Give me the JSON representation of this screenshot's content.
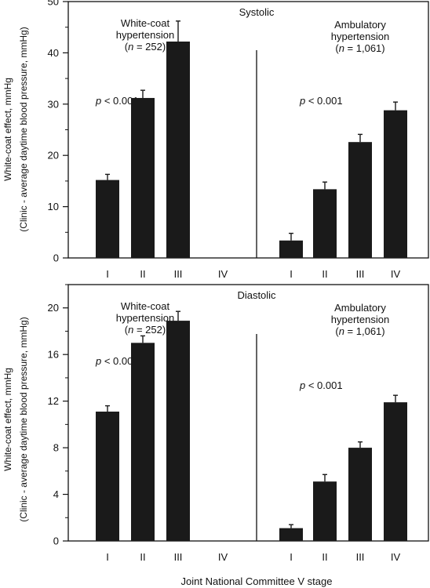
{
  "figure": {
    "xlabel": "Joint National Committee V stage",
    "ylabel_line1": "White-coat effect, mmHg",
    "ylabel_line2": "(Clinic - average daytime blood pressure, mmHg)"
  },
  "chart_data": [
    {
      "type": "bar",
      "title": "Systolic",
      "xlabel": "Joint National Committee V stage",
      "ylabel": "White-coat effect, mmHg (Clinic - average daytime blood pressure, mmHg)",
      "ylim": [
        0,
        50
      ],
      "yticks": [
        0,
        10,
        20,
        30,
        40,
        50
      ],
      "grid": false,
      "groups": [
        {
          "name_line1": "White-coat",
          "name_line2": "hypertension",
          "n_text": "n",
          "n_value": " = 252)",
          "p_label": "p",
          "p_value": " < 0.001",
          "categories": [
            "I",
            "II",
            "III",
            "IV"
          ],
          "values": [
            15.2,
            31.2,
            42.2,
            null
          ],
          "errors": [
            1.1,
            1.5,
            4.0,
            null
          ]
        },
        {
          "name_line1": "Ambulatory",
          "name_line2": "hypertension",
          "n_text": "n",
          "n_value": " = 1,061)",
          "p_label": "p",
          "p_value": " < 0.001",
          "categories": [
            "I",
            "II",
            "III",
            "IV"
          ],
          "values": [
            3.4,
            13.4,
            22.6,
            28.8
          ],
          "errors": [
            1.4,
            1.4,
            1.5,
            1.6
          ]
        }
      ]
    },
    {
      "type": "bar",
      "title": "Diastolic",
      "xlabel": "Joint National Committee V stage",
      "ylabel": "White-coat effect, mmHg (Clinic - average daytime blood pressure, mmHg)",
      "ylim": [
        0,
        22
      ],
      "yticks": [
        0,
        4,
        8,
        12,
        16,
        20
      ],
      "grid": false,
      "groups": [
        {
          "name_line1": "White-coat",
          "name_line2": "hypertension",
          "n_text": "n",
          "n_value": " = 252)",
          "p_label": "p",
          "p_value": " < 0.001",
          "categories": [
            "I",
            "II",
            "III",
            "IV"
          ],
          "values": [
            11.1,
            17.0,
            18.9,
            null
          ],
          "errors": [
            0.5,
            0.6,
            0.8,
            null
          ]
        },
        {
          "name_line1": "Ambulatory",
          "name_line2": "hypertension",
          "n_text": "n",
          "n_value": " = 1,061)",
          "p_label": "p",
          "p_value": " < 0.001",
          "categories": [
            "I",
            "II",
            "III",
            "IV"
          ],
          "values": [
            1.1,
            5.1,
            8.0,
            11.9
          ],
          "errors": [
            0.3,
            0.6,
            0.5,
            0.6
          ]
        }
      ]
    }
  ]
}
